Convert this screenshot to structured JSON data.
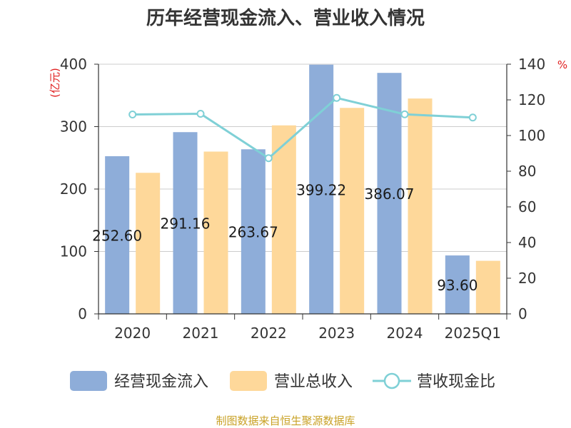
{
  "chart_data": {
    "type": "bar",
    "title": "历年经营现金流入、营业收入情况",
    "categories": [
      "2020",
      "2021",
      "2022",
      "2023",
      "2024",
      "2025Q1"
    ],
    "y_left_unit": "(亿元)",
    "y_right_unit": "%",
    "ylim_left": [
      0,
      400
    ],
    "ylim_right": [
      0,
      140
    ],
    "yticks_left": [
      "0",
      "100",
      "200",
      "300",
      "400"
    ],
    "yticks_right": [
      "0",
      "20",
      "40",
      "60",
      "80",
      "100",
      "120",
      "140"
    ],
    "grid": true,
    "legend_position": "bottom",
    "series": [
      {
        "name": "经营现金流入",
        "type": "bar",
        "axis": "left",
        "color": "#8eadd9",
        "values": [
          252.6,
          291.16,
          263.67,
          399.22,
          386.07,
          93.6
        ],
        "labels": [
          "252.60",
          "291.16",
          "263.67",
          "399.22",
          "386.07",
          "93.60"
        ]
      },
      {
        "name": "营业总收入",
        "type": "bar",
        "axis": "left",
        "color": "#fed89a",
        "values": [
          226,
          260,
          302,
          330,
          345,
          85
        ]
      },
      {
        "name": "营收现金比",
        "type": "line",
        "axis": "right",
        "color": "#7fd0d6",
        "values": [
          111.8,
          112.2,
          87.3,
          121.1,
          111.9,
          110.1
        ]
      }
    ]
  },
  "source_note": "制图数据来自恒生聚源数据库"
}
